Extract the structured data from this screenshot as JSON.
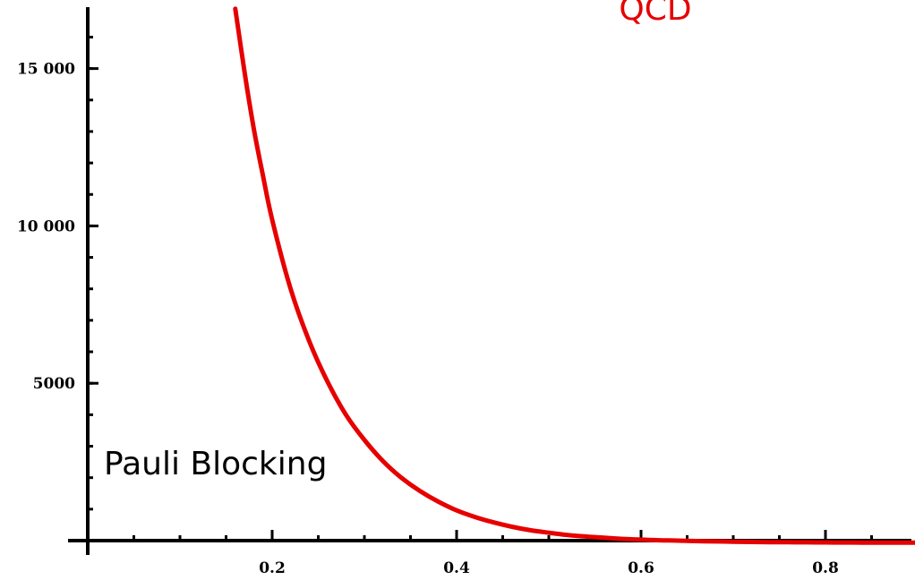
{
  "chart_data": {
    "type": "line",
    "title": "",
    "xlabel": "",
    "ylabel": "",
    "xlim": [
      0.0,
      0.9
    ],
    "ylim": [
      0,
      17000
    ],
    "x_ticks": [
      0.2,
      0.4,
      0.6,
      0.8
    ],
    "x_tick_labels": [
      "0.2",
      "0.4",
      "0.6",
      "0.8"
    ],
    "y_ticks": [
      5000,
      10000,
      15000
    ],
    "y_tick_labels": [
      "5000",
      "10 000",
      "15 000"
    ],
    "grid": false,
    "series": [
      {
        "color": "#e60000",
        "x": [
          0.16,
          0.17,
          0.18,
          0.19,
          0.2,
          0.22,
          0.24,
          0.26,
          0.28,
          0.3,
          0.32,
          0.34,
          0.36,
          0.38,
          0.4,
          0.42,
          0.44,
          0.46,
          0.48,
          0.5,
          0.52,
          0.54,
          0.56,
          0.58,
          0.6,
          0.62,
          0.64,
          0.66,
          0.68,
          0.7,
          0.72,
          0.74,
          0.76,
          0.78,
          0.8,
          0.82,
          0.84,
          0.86,
          0.88,
          0.9
        ],
        "y": [
          16900,
          14900,
          13100,
          11600,
          10200,
          8000,
          6350,
          5050,
          4000,
          3200,
          2530,
          2000,
          1580,
          1240,
          960,
          750,
          580,
          440,
          330,
          250,
          180,
          130,
          90,
          55,
          30,
          12,
          0,
          -15,
          -25,
          -35,
          -42,
          -48,
          -52,
          -55,
          -58,
          -60,
          -62,
          -63,
          -64,
          -65
        ]
      }
    ],
    "annotations": [
      {
        "text": "Pauli Blocking",
        "color": "#000000"
      },
      {
        "text": "QCD",
        "color": "#e60000"
      }
    ]
  }
}
